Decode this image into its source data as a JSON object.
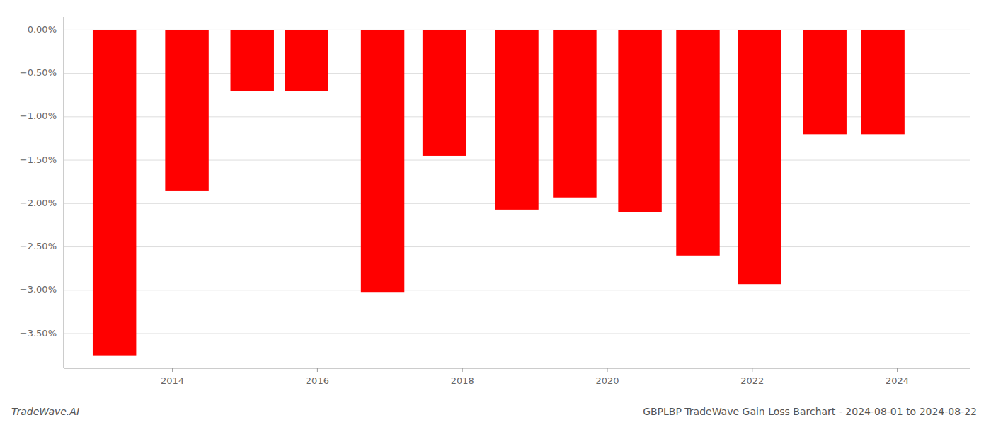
{
  "chart_data": {
    "type": "bar",
    "title": "GBPLBP TradeWave Gain Loss Barchart - 2024-08-01 to 2024-08-22",
    "annotations": [
      "TradeWave.AI"
    ],
    "x": [
      2013.2,
      2014.2,
      2015.1,
      2015.85,
      2016.9,
      2017.75,
      2018.75,
      2019.55,
      2020.45,
      2021.25,
      2022.1,
      2023.0,
      2023.8
    ],
    "values": [
      -3.75,
      -1.85,
      -0.7,
      -0.7,
      -3.02,
      -1.45,
      -2.07,
      -1.93,
      -2.1,
      -2.6,
      -2.93,
      -1.2,
      -1.2
    ],
    "color": "#ff0000",
    "xlim": [
      2012.5,
      2025.0
    ],
    "xticks": [
      2014,
      2016,
      2018,
      2020,
      2022,
      2024
    ],
    "ylim": [
      -3.9,
      0.15
    ],
    "yticks": [
      {
        "value": 0.0,
        "label": "0.00%"
      },
      {
        "value": -0.5,
        "label": "−0.50%"
      },
      {
        "value": -1.0,
        "label": "−1.00%"
      },
      {
        "value": -1.5,
        "label": "−1.50%"
      },
      {
        "value": -2.0,
        "label": "−2.00%"
      },
      {
        "value": -2.5,
        "label": "−2.50%"
      },
      {
        "value": -3.0,
        "label": "−3.00%"
      },
      {
        "value": -3.5,
        "label": "−3.50%"
      }
    ],
    "grid": true
  }
}
